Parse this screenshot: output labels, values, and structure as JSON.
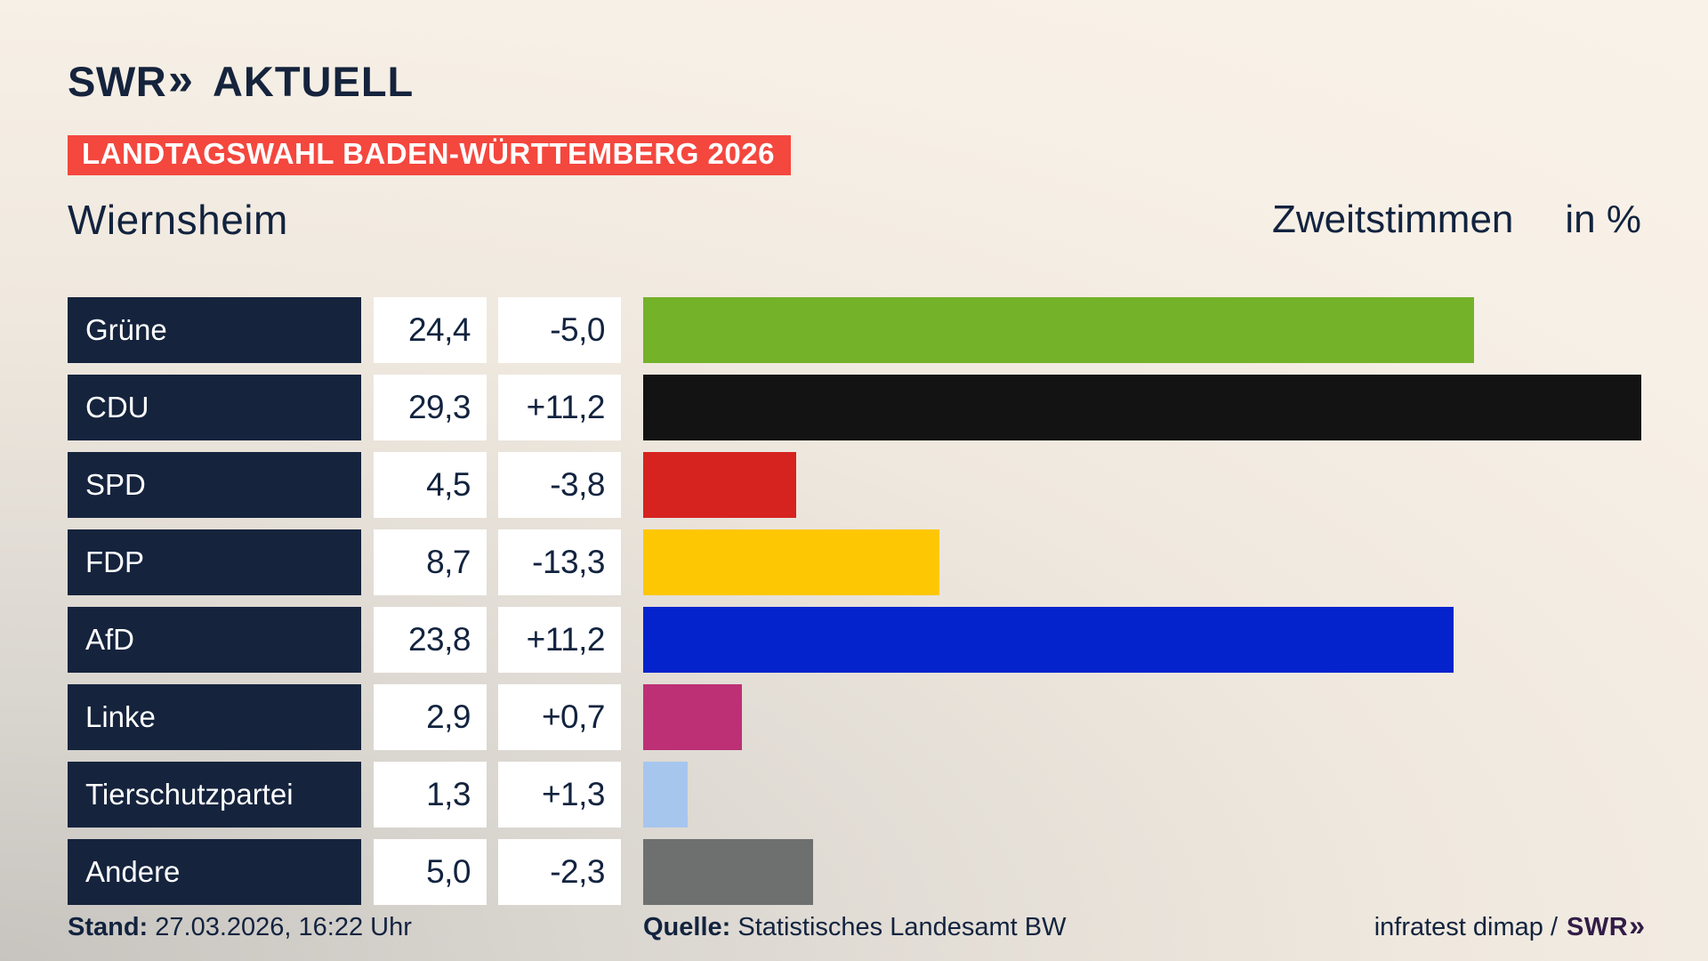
{
  "header": {
    "logo": {
      "swr": "SWR",
      "chevrons": "»",
      "aktuell": "AKTUELL"
    },
    "banner": "LANDTAGSWAHL BADEN-WÜRTTEMBERG 2026",
    "municipality": "Wiernsheim",
    "value_label": "Zweitstimmen",
    "unit_label": "in %"
  },
  "chart_data": {
    "type": "bar",
    "title": "Zweitstimmen in % — Landtagswahl Baden-Württemberg 2026, Wiernsheim",
    "xlabel": "",
    "ylabel": "Zweitstimmen in %",
    "axis_range": [
      0,
      29.3
    ],
    "max_value": 29.3,
    "grid": false,
    "legend": "none",
    "categories": [
      "Grüne",
      "CDU",
      "SPD",
      "FDP",
      "AfD",
      "Linke",
      "Tierschutzpartei",
      "Andere"
    ],
    "values": [
      24.4,
      29.3,
      4.5,
      8.7,
      23.8,
      2.9,
      1.3,
      5.0
    ],
    "changes": [
      -5.0,
      11.2,
      -3.8,
      -13.3,
      11.2,
      0.7,
      1.3,
      -2.3
    ],
    "rows": [
      {
        "party": "Grüne",
        "value": 24.4,
        "value_label": "24,4",
        "change_label": "-5,0",
        "color": "#74b22a"
      },
      {
        "party": "CDU",
        "value": 29.3,
        "value_label": "29,3",
        "change_label": "+11,2",
        "color": "#131313"
      },
      {
        "party": "SPD",
        "value": 4.5,
        "value_label": "4,5",
        "change_label": "-3,8",
        "color": "#d6231f"
      },
      {
        "party": "FDP",
        "value": 8.7,
        "value_label": "8,7",
        "change_label": "-13,3",
        "color": "#fdc704"
      },
      {
        "party": "AfD",
        "value": 23.8,
        "value_label": "23,8",
        "change_label": "+11,2",
        "color": "#0523cc"
      },
      {
        "party": "Linke",
        "value": 2.9,
        "value_label": "2,9",
        "change_label": "+0,7",
        "color": "#bd3076"
      },
      {
        "party": "Tierschutzpartei",
        "value": 1.3,
        "value_label": "1,3",
        "change_label": "+1,3",
        "color": "#a6c6ee"
      },
      {
        "party": "Andere",
        "value": 5.0,
        "value_label": "5,0",
        "change_label": "-2,3",
        "color": "#6e7070"
      }
    ]
  },
  "footer": {
    "stand_label": "Stand:",
    "stand_value": "27.03.2026, 16:22 Uhr",
    "quelle_label": "Quelle:",
    "quelle_value": "Statistisches Landesamt BW",
    "credit_text": "infratest dimap /",
    "credit_logo": {
      "swr": "SWR",
      "chevrons": "»"
    }
  },
  "colors": {
    "background_cream": "#f9f2e8",
    "background_gray": "#c7c4bf",
    "navy": "#15233d",
    "banner_red": "#f4473e",
    "cell_white": "#ffffff",
    "footer_logo_purple": "#321c46"
  }
}
